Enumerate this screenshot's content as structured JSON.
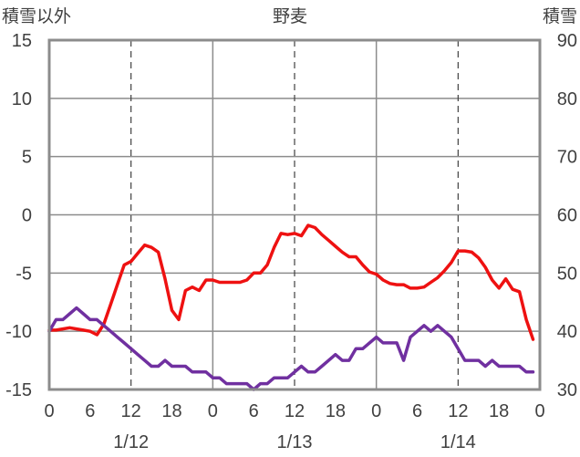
{
  "header": {
    "left_label": "積雪以外",
    "title": "野麦",
    "right_label": "積雪"
  },
  "chart_data": {
    "type": "line",
    "title": "野麦",
    "y_left": {
      "label": "積雪以外",
      "min": -15,
      "max": 15,
      "ticks": [
        "15",
        "10",
        "5",
        "0",
        "-5",
        "-10",
        "-15"
      ]
    },
    "y_right": {
      "label": "積雪",
      "min": 30,
      "max": 90,
      "ticks": [
        "90",
        "80",
        "70",
        "60",
        "50",
        "40",
        "30"
      ]
    },
    "x": {
      "unit": "hour",
      "min": 0,
      "max": 72,
      "tick_hours": [
        0,
        6,
        12,
        18,
        24,
        30,
        36,
        42,
        48,
        54,
        60,
        66,
        72
      ],
      "tick_labels": [
        "0",
        "6",
        "12",
        "18",
        "0",
        "6",
        "12",
        "18",
        "0",
        "6",
        "12",
        "18",
        "0"
      ],
      "day_labels": [
        {
          "hour": 12,
          "text": "1/12"
        },
        {
          "hour": 36,
          "text": "1/13"
        },
        {
          "hour": 60,
          "text": "1/14"
        }
      ]
    },
    "grid": {
      "solid_hours": [
        24,
        48
      ],
      "dashed_hours": [
        12,
        36,
        60
      ],
      "horizontal": [
        10,
        5,
        0,
        -5,
        -10
      ]
    },
    "series": [
      {
        "color": "#ee1111",
        "axis": "left",
        "values": [
          [
            0,
            -9.9
          ],
          [
            1,
            -9.9
          ],
          [
            2,
            -9.8
          ],
          [
            3,
            -9.7
          ],
          [
            4,
            -9.8
          ],
          [
            5,
            -9.9
          ],
          [
            6,
            -10.0
          ],
          [
            7,
            -10.3
          ],
          [
            8,
            -9.4
          ],
          [
            9,
            -7.7
          ],
          [
            10,
            -6.0
          ],
          [
            11,
            -4.3
          ],
          [
            12,
            -4.0
          ],
          [
            13,
            -3.3
          ],
          [
            14,
            -2.6
          ],
          [
            15,
            -2.8
          ],
          [
            16,
            -3.2
          ],
          [
            17,
            -5.5
          ],
          [
            18,
            -8.2
          ],
          [
            19,
            -9.0
          ],
          [
            20,
            -6.5
          ],
          [
            21,
            -6.2
          ],
          [
            22,
            -6.5
          ],
          [
            23,
            -5.6
          ],
          [
            24,
            -5.6
          ],
          [
            25,
            -5.8
          ],
          [
            26,
            -5.8
          ],
          [
            27,
            -5.8
          ],
          [
            28,
            -5.8
          ],
          [
            29,
            -5.6
          ],
          [
            30,
            -5.0
          ],
          [
            31,
            -5.0
          ],
          [
            32,
            -4.3
          ],
          [
            33,
            -2.8
          ],
          [
            34,
            -1.6
          ],
          [
            35,
            -1.7
          ],
          [
            36,
            -1.6
          ],
          [
            37,
            -1.8
          ],
          [
            38,
            -0.9
          ],
          [
            39,
            -1.1
          ],
          [
            40,
            -1.7
          ],
          [
            41,
            -2.2
          ],
          [
            42,
            -2.7
          ],
          [
            43,
            -3.2
          ],
          [
            44,
            -3.6
          ],
          [
            45,
            -3.6
          ],
          [
            46,
            -4.3
          ],
          [
            47,
            -4.9
          ],
          [
            48,
            -5.1
          ],
          [
            49,
            -5.6
          ],
          [
            50,
            -5.9
          ],
          [
            51,
            -6.0
          ],
          [
            52,
            -6.0
          ],
          [
            53,
            -6.3
          ],
          [
            54,
            -6.3
          ],
          [
            55,
            -6.2
          ],
          [
            56,
            -5.8
          ],
          [
            57,
            -5.4
          ],
          [
            58,
            -4.8
          ],
          [
            59,
            -4.1
          ],
          [
            60,
            -3.1
          ],
          [
            61,
            -3.1
          ],
          [
            62,
            -3.2
          ],
          [
            63,
            -3.7
          ],
          [
            64,
            -4.5
          ],
          [
            65,
            -5.6
          ],
          [
            66,
            -6.3
          ],
          [
            67,
            -5.5
          ],
          [
            68,
            -6.4
          ],
          [
            69,
            -6.6
          ],
          [
            70,
            -9.0
          ],
          [
            71,
            -10.7
          ]
        ]
      },
      {
        "color": "#7030a0",
        "axis": "left",
        "values": [
          [
            0,
            -10.0
          ],
          [
            1,
            -9.0
          ],
          [
            2,
            -9.0
          ],
          [
            3,
            -8.5
          ],
          [
            4,
            -8.0
          ],
          [
            5,
            -8.5
          ],
          [
            6,
            -9.0
          ],
          [
            7,
            -9.0
          ],
          [
            8,
            -9.5
          ],
          [
            9,
            -10.0
          ],
          [
            10,
            -10.5
          ],
          [
            11,
            -11.0
          ],
          [
            12,
            -11.5
          ],
          [
            13,
            -12.0
          ],
          [
            14,
            -12.5
          ],
          [
            15,
            -13.0
          ],
          [
            16,
            -13.0
          ],
          [
            17,
            -12.5
          ],
          [
            18,
            -13.0
          ],
          [
            19,
            -13.0
          ],
          [
            20,
            -13.0
          ],
          [
            21,
            -13.5
          ],
          [
            22,
            -13.5
          ],
          [
            23,
            -13.5
          ],
          [
            24,
            -14.0
          ],
          [
            25,
            -14.0
          ],
          [
            26,
            -14.5
          ],
          [
            27,
            -14.5
          ],
          [
            28,
            -14.5
          ],
          [
            29,
            -14.5
          ],
          [
            30,
            -15.0
          ],
          [
            31,
            -14.5
          ],
          [
            32,
            -14.5
          ],
          [
            33,
            -14.0
          ],
          [
            34,
            -14.0
          ],
          [
            35,
            -14.0
          ],
          [
            36,
            -13.5
          ],
          [
            37,
            -13.0
          ],
          [
            38,
            -13.5
          ],
          [
            39,
            -13.5
          ],
          [
            40,
            -13.0
          ],
          [
            41,
            -12.5
          ],
          [
            42,
            -12.0
          ],
          [
            43,
            -12.5
          ],
          [
            44,
            -12.5
          ],
          [
            45,
            -11.5
          ],
          [
            46,
            -11.5
          ],
          [
            47,
            -11.0
          ],
          [
            48,
            -10.5
          ],
          [
            49,
            -11.0
          ],
          [
            50,
            -11.0
          ],
          [
            51,
            -11.0
          ],
          [
            52,
            -12.5
          ],
          [
            53,
            -10.5
          ],
          [
            54,
            -10.0
          ],
          [
            55,
            -9.5
          ],
          [
            56,
            -10.0
          ],
          [
            57,
            -9.5
          ],
          [
            58,
            -10.0
          ],
          [
            59,
            -10.5
          ],
          [
            60,
            -11.5
          ],
          [
            61,
            -12.5
          ],
          [
            62,
            -12.5
          ],
          [
            63,
            -12.5
          ],
          [
            64,
            -13.0
          ],
          [
            65,
            -12.5
          ],
          [
            66,
            -13.0
          ],
          [
            67,
            -13.0
          ],
          [
            68,
            -13.0
          ],
          [
            69,
            -13.0
          ],
          [
            70,
            -13.5
          ],
          [
            71,
            -13.5
          ]
        ]
      }
    ]
  }
}
